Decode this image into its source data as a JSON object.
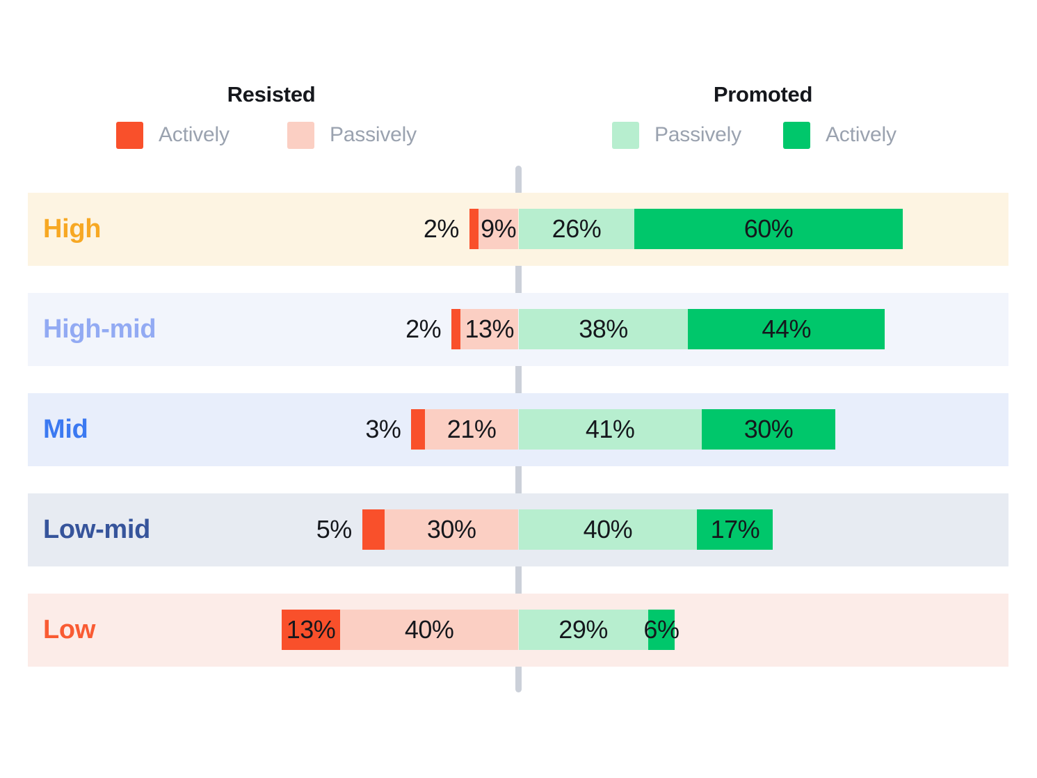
{
  "legend": {
    "resisted": {
      "title": "Resisted",
      "items": [
        {
          "label": "Actively",
          "color": "#F9502B"
        },
        {
          "label": "Passively",
          "color": "#FBCFC3"
        }
      ]
    },
    "promoted": {
      "title": "Promoted",
      "items": [
        {
          "label": "Passively",
          "color": "#B7EECF"
        },
        {
          "label": "Actively",
          "color": "#00C76B"
        }
      ]
    }
  },
  "chart_data": {
    "type": "bar",
    "variant": "diverging-stacked-horizontal",
    "orientation": "horizontal",
    "center_axis": {
      "visible": true,
      "style": "dashed-gray-line",
      "color": "#CBD0D9"
    },
    "legend_position": "top",
    "grid": false,
    "value_suffix": "%",
    "categories": [
      "High",
      "High-mid",
      "Mid",
      "Low-mid",
      "Low"
    ],
    "series": [
      {
        "name": "Actively resisted",
        "side": "left",
        "color": "#F9502B",
        "values": [
          2,
          2,
          3,
          5,
          13
        ]
      },
      {
        "name": "Passively resisted",
        "side": "left",
        "color": "#FBCFC3",
        "values": [
          9,
          13,
          21,
          30,
          40
        ]
      },
      {
        "name": "Passively promoted",
        "side": "right",
        "color": "#B7EECF",
        "values": [
          26,
          38,
          41,
          40,
          29
        ]
      },
      {
        "name": "Actively promoted",
        "side": "right",
        "color": "#00C76B",
        "values": [
          60,
          44,
          30,
          17,
          6
        ]
      }
    ]
  },
  "rows": [
    {
      "label_color": "#F7A823",
      "bg": "#FDF4E2"
    },
    {
      "label_color": "#92AAF3",
      "bg": "#F2F5FC"
    },
    {
      "label_color": "#3B79F1",
      "bg": "#E8EEFB"
    },
    {
      "label_color": "#36549B",
      "bg": "#E7EBF2"
    },
    {
      "label_color": "#F95B33",
      "bg": "#FCECE8"
    }
  ]
}
